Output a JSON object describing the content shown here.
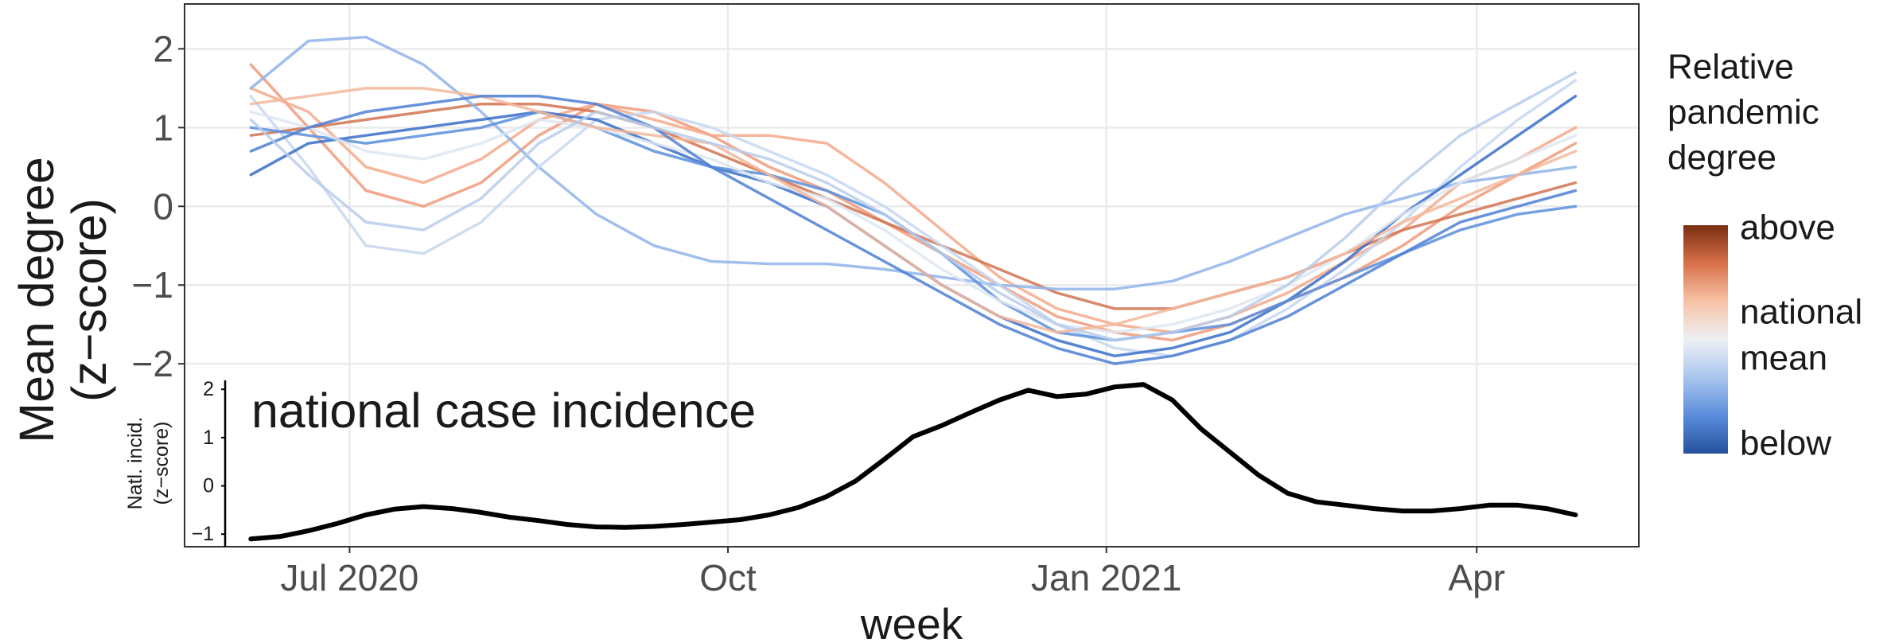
{
  "chart_data": [
    {
      "type": "line",
      "ylabel": [
        "Mean degree",
        "(z−score)"
      ],
      "x": [
        0,
        2,
        4,
        6,
        8,
        10,
        12,
        14,
        16,
        18,
        20,
        22,
        24,
        26,
        28,
        30,
        32,
        34,
        36,
        38,
        40,
        42,
        44,
        46
      ],
      "xlim": [
        -2.3,
        48.2
      ],
      "ylim": [
        -2.14,
        2.57
      ],
      "yticks": [
        {
          "value": -2,
          "label": "−2"
        },
        {
          "value": -1,
          "label": "−1"
        },
        0,
        1,
        2
      ],
      "grid": true,
      "legend": {
        "title": [
          "Relative",
          "pandemic",
          "degree"
        ],
        "labels": [
          [
            "above"
          ],
          [
            "national",
            "mean"
          ],
          [
            "below"
          ]
        ],
        "colors": [
          "#7a2f12",
          "#d9704a",
          "#f7c3a6",
          "#eef0f4",
          "#a9c5ee",
          "#5a8ddb",
          "#25519e"
        ]
      },
      "series": [
        {
          "color": "#f19a79",
          "values": [
            1.8,
            1.0,
            0.2,
            0.0,
            0.3,
            0.9,
            1.3,
            1.2,
            0.9,
            0.5,
            0.2,
            -0.2,
            -0.6,
            -1.0,
            -1.4,
            -1.6,
            -1.7,
            -1.5,
            -1.2,
            -0.9,
            -0.5,
            0.0,
            0.4,
            0.8
          ]
        },
        {
          "color": "#f4a98a",
          "values": [
            1.5,
            1.2,
            0.5,
            0.3,
            0.6,
            1.1,
            1.3,
            1.1,
            0.9,
            0.9,
            0.8,
            0.3,
            -0.3,
            -0.9,
            -1.3,
            -1.5,
            -1.6,
            -1.4,
            -1.1,
            -0.7,
            -0.3,
            0.3,
            0.6,
            1.0
          ]
        },
        {
          "color": "#d0744f",
          "values": [
            0.9,
            1.0,
            1.1,
            1.2,
            1.3,
            1.3,
            1.2,
            1.0,
            0.7,
            0.4,
            0.1,
            -0.2,
            -0.5,
            -0.8,
            -1.1,
            -1.3,
            -1.3,
            -1.1,
            -0.9,
            -0.6,
            -0.3,
            -0.1,
            0.1,
            0.3
          ]
        },
        {
          "color": "#8fb4ea",
          "values": [
            1.5,
            2.1,
            2.15,
            1.8,
            1.2,
            0.5,
            -0.1,
            -0.5,
            -0.7,
            -0.73,
            -0.73,
            -0.8,
            -0.9,
            -1.0,
            -1.05,
            -1.05,
            -0.95,
            -0.7,
            -0.4,
            -0.1,
            0.1,
            0.3,
            0.4,
            0.5
          ]
        },
        {
          "color": "#c7d7f0",
          "values": [
            1.4,
            0.5,
            -0.5,
            -0.6,
            -0.2,
            0.5,
            1.1,
            1.2,
            1.0,
            0.7,
            0.4,
            0.0,
            -0.5,
            -1.0,
            -1.5,
            -1.8,
            -1.9,
            -1.7,
            -1.3,
            -0.8,
            -0.2,
            0.5,
            1.1,
            1.6
          ]
        },
        {
          "color": "#3a6fc9",
          "values": [
            0.4,
            0.8,
            0.9,
            1.0,
            1.1,
            1.2,
            1.1,
            0.8,
            0.5,
            0.3,
            0.0,
            -0.5,
            -1.0,
            -1.4,
            -1.7,
            -1.9,
            -1.8,
            -1.6,
            -1.2,
            -0.7,
            -0.1,
            0.4,
            0.9,
            1.4
          ]
        },
        {
          "color": "#5b8fdc",
          "values": [
            1.0,
            0.9,
            0.8,
            0.9,
            1.0,
            1.2,
            1.0,
            0.7,
            0.5,
            0.4,
            0.2,
            -0.1,
            -0.6,
            -1.2,
            -1.6,
            -1.7,
            -1.6,
            -1.5,
            -1.2,
            -0.9,
            -0.6,
            -0.3,
            -0.1,
            0.0
          ]
        },
        {
          "color": "#dde6f2",
          "values": [
            1.2,
            1.0,
            0.7,
            0.6,
            0.8,
            1.1,
            1.0,
            0.8,
            0.6,
            0.3,
            0.1,
            -0.3,
            -0.8,
            -1.2,
            -1.5,
            -1.6,
            -1.5,
            -1.3,
            -1.0,
            -0.6,
            -0.1,
            0.3,
            0.6,
            0.9
          ]
        },
        {
          "color": "#f3b79b",
          "values": [
            1.3,
            1.4,
            1.5,
            1.5,
            1.4,
            1.2,
            1.0,
            0.9,
            0.8,
            0.4,
            0.0,
            -0.5,
            -1.0,
            -1.4,
            -1.6,
            -1.5,
            -1.3,
            -1.1,
            -0.9,
            -0.6,
            -0.2,
            0.1,
            0.4,
            0.7
          ]
        },
        {
          "color": "#4d7fd4",
          "values": [
            0.7,
            1.0,
            1.2,
            1.3,
            1.4,
            1.4,
            1.3,
            1.0,
            0.5,
            0.1,
            -0.3,
            -0.7,
            -1.1,
            -1.5,
            -1.8,
            -2.0,
            -1.9,
            -1.7,
            -1.4,
            -1.0,
            -0.6,
            -0.2,
            0.0,
            0.2
          ]
        },
        {
          "color": "#b9cdeb",
          "values": [
            1.1,
            0.4,
            -0.2,
            -0.3,
            0.1,
            0.8,
            1.2,
            1.0,
            0.8,
            0.6,
            0.3,
            -0.1,
            -0.6,
            -1.1,
            -1.5,
            -1.7,
            -1.6,
            -1.4,
            -1.0,
            -0.4,
            0.3,
            0.9,
            1.3,
            1.7
          ]
        }
      ]
    },
    {
      "type": "line",
      "annotation": "national case incidence",
      "ylabel": [
        "Natl. incid.",
        "(z−score)"
      ],
      "xlabel": "week",
      "x": [
        0,
        1,
        2,
        3,
        4,
        5,
        6,
        7,
        8,
        9,
        10,
        11,
        12,
        13,
        14,
        15,
        16,
        17,
        18,
        19,
        20,
        21,
        22,
        23,
        24,
        25,
        26,
        27,
        28,
        29,
        30,
        31,
        32,
        33,
        34,
        35,
        36,
        37,
        38,
        39,
        40,
        41,
        42,
        43,
        44,
        45,
        46
      ],
      "xlim": [
        -2.3,
        48.2
      ],
      "xticks": [
        {
          "value": 3.43,
          "label": "Jul 2020"
        },
        {
          "value": 16.57,
          "label": "Oct"
        },
        {
          "value": 29.71,
          "label": "Jan 2021"
        },
        {
          "value": 42.57,
          "label": "Apr"
        }
      ],
      "ylim": [
        -1.26,
        2.3
      ],
      "yticks": [
        {
          "value": -1,
          "label": "−1"
        },
        0,
        1,
        2
      ],
      "color": "#000000",
      "values": [
        -1.1,
        -1.05,
        -0.93,
        -0.78,
        -0.6,
        -0.48,
        -0.43,
        -0.47,
        -0.55,
        -0.65,
        -0.72,
        -0.8,
        -0.85,
        -0.86,
        -0.84,
        -0.8,
        -0.75,
        -0.7,
        -0.6,
        -0.45,
        -0.22,
        0.1,
        0.55,
        1.02,
        1.25,
        1.52,
        1.78,
        1.98,
        1.85,
        1.9,
        2.05,
        2.1,
        1.78,
        1.18,
        0.7,
        0.22,
        -0.15,
        -0.33,
        -0.4,
        -0.47,
        -0.52,
        -0.52,
        -0.47,
        -0.4,
        -0.4,
        -0.47,
        -0.6
      ]
    }
  ]
}
